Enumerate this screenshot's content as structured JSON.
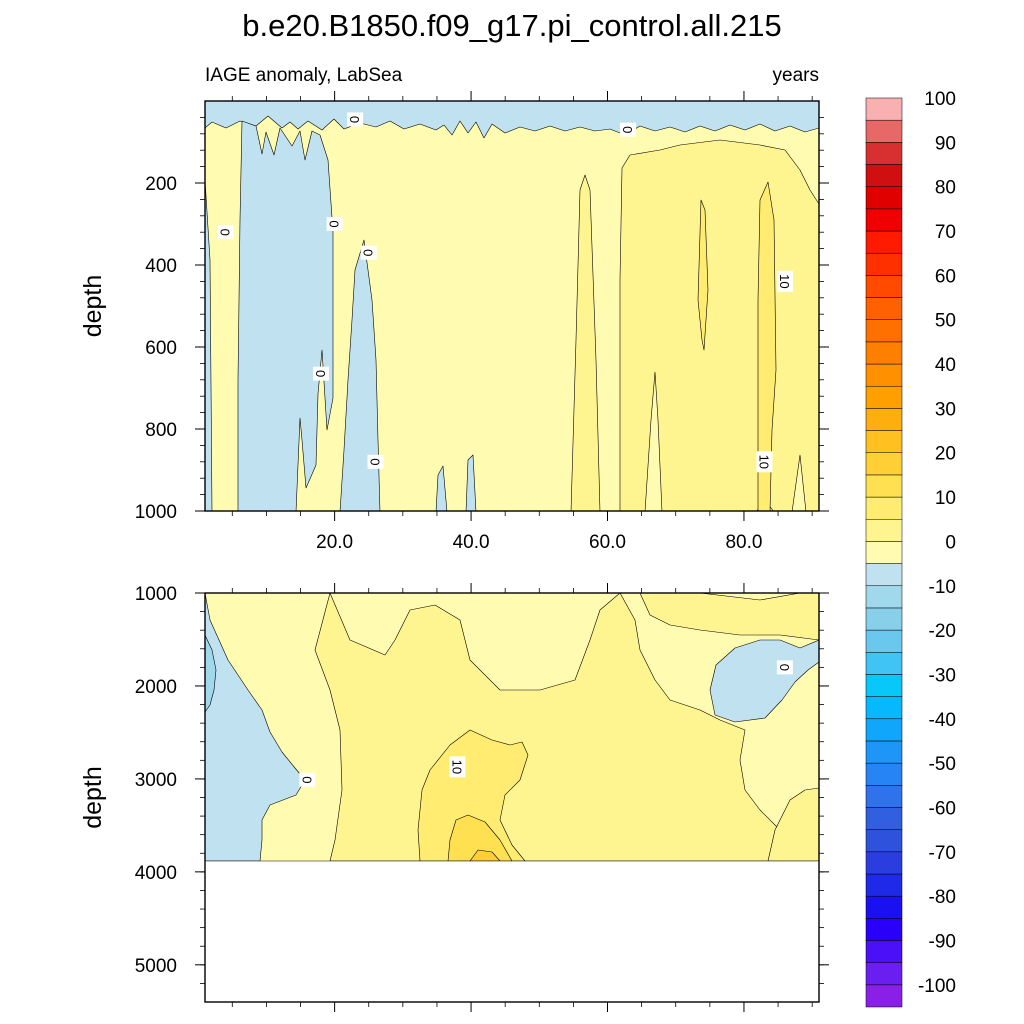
{
  "chart_data": {
    "type": "heatmap",
    "title": "b.e20.B1850.f09_g17.pi_control.all.215",
    "subtitle_left": "IAGE anomaly, LabSea",
    "subtitle_right": "years",
    "colorbar": {
      "levels": [
        -100,
        -95,
        -90,
        -85,
        -80,
        -75,
        -70,
        -65,
        -60,
        -55,
        -50,
        -45,
        -40,
        -35,
        -30,
        -25,
        -20,
        -15,
        -10,
        -5,
        0,
        5,
        10,
        15,
        20,
        25,
        30,
        35,
        40,
        45,
        50,
        55,
        60,
        65,
        70,
        75,
        80,
        85,
        90,
        95,
        100
      ],
      "colors": [
        "#8a20e8",
        "#6a1ef0",
        "#4a10f8",
        "#2a00fa",
        "#1a10f0",
        "#1e2ae8",
        "#2a3ee0",
        "#2e52dc",
        "#3060e0",
        "#2e72ec",
        "#2684f4",
        "#1e96f8",
        "#10a6fa",
        "#08b8fc",
        "#08c8fa",
        "#40c4f4",
        "#6ac8ee",
        "#88d0ea",
        "#a2d8ec",
        "#c0e2f0",
        "#fffbb0",
        "#fff590",
        "#ffec70",
        "#ffe050",
        "#ffd035",
        "#ffc020",
        "#ffae10",
        "#ffa000",
        "#ff9000",
        "#ff8000",
        "#ff7000",
        "#ff6000",
        "#ff4a00",
        "#ff3000",
        "#ff1a00",
        "#f00000",
        "#e00000",
        "#d01010",
        "#d83030",
        "#e86868",
        "#f8b0b0"
      ],
      "tick_labels": [
        "-100",
        "-90",
        "-80",
        "-70",
        "-60",
        "-50",
        "-40",
        "-30",
        "-20",
        "-10",
        "0",
        "10",
        "20",
        "30",
        "40",
        "50",
        "60",
        "70",
        "80",
        "90",
        "100"
      ]
    },
    "panels": [
      {
        "ylabel": "depth",
        "ylim": [
          0,
          1000
        ],
        "xlim": [
          1,
          91
        ],
        "yticks": [
          200,
          400,
          600,
          800,
          1000
        ],
        "xticks": [
          20,
          40,
          60,
          80
        ],
        "xtick_labels": [
          "20.0",
          "40.0",
          "60.0",
          "80.0"
        ],
        "contour_labels": [
          {
            "text": "0",
            "x": 23,
            "y": 45
          },
          {
            "text": "0",
            "x": 63,
            "y": 70
          },
          {
            "text": "0",
            "x": 4,
            "y": 320
          },
          {
            "text": "0",
            "x": 20,
            "y": 300
          },
          {
            "text": "0",
            "x": 25,
            "y": 370
          },
          {
            "text": "10",
            "x": 86,
            "y": 440
          },
          {
            "text": "0",
            "x": 18,
            "y": 665
          },
          {
            "text": "0",
            "x": 26,
            "y": 880
          },
          {
            "text": "10",
            "x": 83,
            "y": 880
          }
        ]
      },
      {
        "ylabel": "depth",
        "ylim": [
          1000,
          5400
        ],
        "xlim": [
          1,
          91
        ],
        "yticks": [
          1000,
          2000,
          3000,
          4000,
          5000
        ],
        "xticks": [
          20,
          40,
          60,
          80
        ],
        "data_bottom": 3870,
        "contour_labels": [
          {
            "text": "0",
            "x": 86,
            "y": 1800
          },
          {
            "text": "10",
            "x": 38,
            "y": 2870
          },
          {
            "text": "0",
            "x": 16,
            "y": 3010
          }
        ]
      }
    ]
  }
}
